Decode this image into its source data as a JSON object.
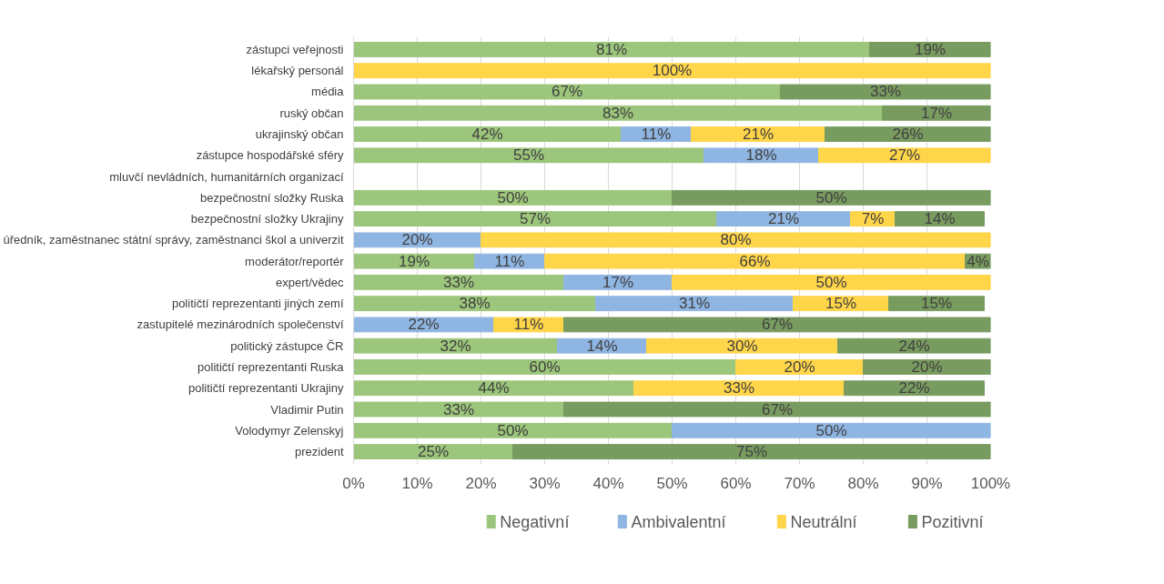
{
  "chart_data": {
    "type": "bar",
    "orientation": "horizontal",
    "stacked": true,
    "legend": "bottom",
    "grid": "x",
    "categories": [
      "zástupci veřejnosti",
      "lékařský personál",
      "média",
      "ruský občan",
      "ukrajinský občan",
      "zástupce hospodářské sféry",
      "mluvčí nevládních, humanitárních organizací",
      "bezpečnostní složky Ruska",
      "bezpečnostní složky Ukrajiny",
      "úředník, zaměstnanec státní správy, zaměstnanci škol a univerzit",
      "moderátor/reportér",
      "expert/vědec",
      "političtí reprezentanti jiných zemí",
      "zastupitelé mezinárodních společenství",
      "politický zástupce ČR",
      "političtí reprezentanti Ruska",
      "političtí reprezentanti Ukrajiny",
      "Vladimir Putin",
      "Volodymyr Zelenskyj",
      "prezident"
    ],
    "xlim": [
      0,
      100
    ],
    "xticks": [
      {
        "value": 0,
        "label": "0%"
      },
      {
        "value": 10,
        "label": "10%"
      },
      {
        "value": 20,
        "label": "20%"
      },
      {
        "value": 30,
        "label": "30%"
      },
      {
        "value": 40,
        "label": "40%"
      },
      {
        "value": 50,
        "label": "50%"
      },
      {
        "value": 60,
        "label": "60%"
      },
      {
        "value": 70,
        "label": "70%"
      },
      {
        "value": 80,
        "label": "80%"
      },
      {
        "value": 90,
        "label": "90%"
      },
      {
        "value": 100,
        "label": "100%"
      }
    ],
    "series": [
      {
        "name": "Negativní",
        "color": "#9cc67b",
        "values": [
          81,
          null,
          67,
          83,
          42,
          55,
          null,
          50,
          57,
          null,
          19,
          33,
          38,
          null,
          32,
          60,
          44,
          33,
          50,
          25
        ],
        "value_labels": [
          "81%",
          null,
          "67%",
          "83%",
          "42%",
          "55%",
          null,
          "50%",
          "57%",
          null,
          "19%",
          "33%",
          "38%",
          null,
          "32%",
          "60%",
          "44%",
          "33%",
          "50%",
          "25%"
        ]
      },
      {
        "name": "Ambivalentní",
        "color": "#8fb5e2",
        "values": [
          null,
          null,
          null,
          null,
          11,
          18,
          null,
          null,
          21,
          20,
          11,
          17,
          31,
          22,
          14,
          null,
          null,
          null,
          50,
          null
        ],
        "value_labels": [
          null,
          null,
          null,
          null,
          "11%",
          "18%",
          null,
          null,
          "21%",
          "20%",
          "11%",
          "17%",
          "31%",
          "22%",
          "14%",
          null,
          null,
          null,
          "50%",
          null
        ]
      },
      {
        "name": "Neutrální",
        "color": "#ffd54a",
        "values": [
          null,
          100,
          null,
          null,
          21,
          27,
          null,
          null,
          7,
          80,
          66,
          50,
          15,
          11,
          30,
          20,
          33,
          null,
          null,
          null
        ],
        "value_labels": [
          null,
          "100%",
          null,
          null,
          "21%",
          "27%",
          null,
          null,
          "7%",
          "80%",
          "66%",
          "50%",
          "15%",
          "11%",
          "30%",
          "20%",
          "33%",
          null,
          null,
          null
        ]
      },
      {
        "name": "Pozitivní",
        "color": "#789b5f",
        "values": [
          19,
          null,
          33,
          17,
          26,
          null,
          null,
          50,
          14,
          null,
          4,
          null,
          15,
          67,
          24,
          20,
          22,
          67,
          null,
          75
        ],
        "value_labels": [
          "19%",
          null,
          "33%",
          "17%",
          "26%",
          null,
          null,
          "50%",
          "14%",
          null,
          "4%",
          null,
          "15%",
          "67%",
          "24%",
          "20%",
          "22%",
          "67%",
          null,
          "75%"
        ]
      }
    ]
  }
}
